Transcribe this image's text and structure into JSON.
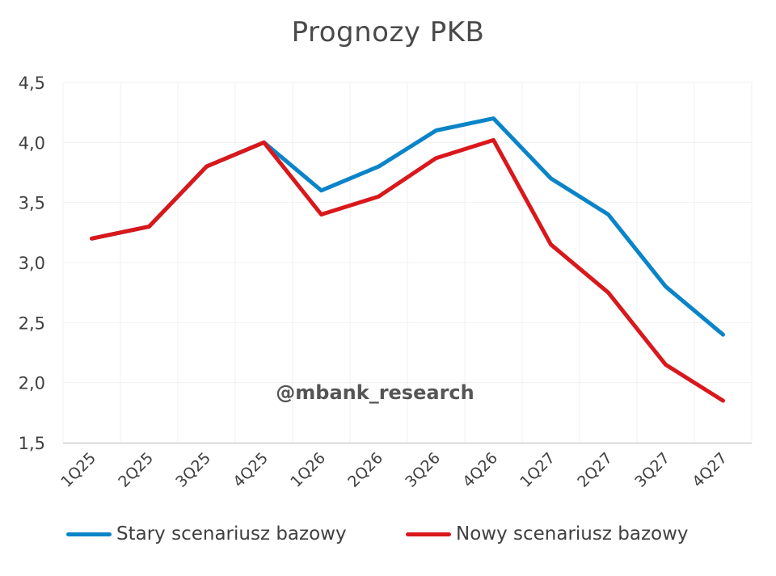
{
  "chart_data": {
    "type": "line",
    "title": "Prognozy PKB",
    "xlabel": "",
    "ylabel": "",
    "categories": [
      "1Q25",
      "2Q25",
      "3Q25",
      "4Q25",
      "1Q26",
      "2Q26",
      "3Q26",
      "4Q26",
      "1Q27",
      "2Q27",
      "3Q27",
      "4Q27"
    ],
    "series": [
      {
        "name": "Stary scenariusz bazowy",
        "color": "#0a84c8",
        "values": [
          3.2,
          3.3,
          3.8,
          4.0,
          3.6,
          3.8,
          4.1,
          4.2,
          3.7,
          3.4,
          2.8,
          2.4
        ]
      },
      {
        "name": "Nowy scenariusz bazowy",
        "color": "#d9181c",
        "values": [
          3.2,
          3.3,
          3.8,
          4.0,
          3.4,
          3.55,
          3.87,
          4.02,
          3.15,
          2.75,
          2.15,
          1.85
        ]
      }
    ],
    "ylim": [
      1.5,
      4.5
    ],
    "yticks": [
      "1,5",
      "2,0",
      "2,5",
      "3,0",
      "3,5",
      "4,0",
      "4,5"
    ],
    "grid": true,
    "legend_position": "bottom",
    "annotations": [
      "@mbank_research"
    ]
  },
  "watermark": "@mbank_research"
}
